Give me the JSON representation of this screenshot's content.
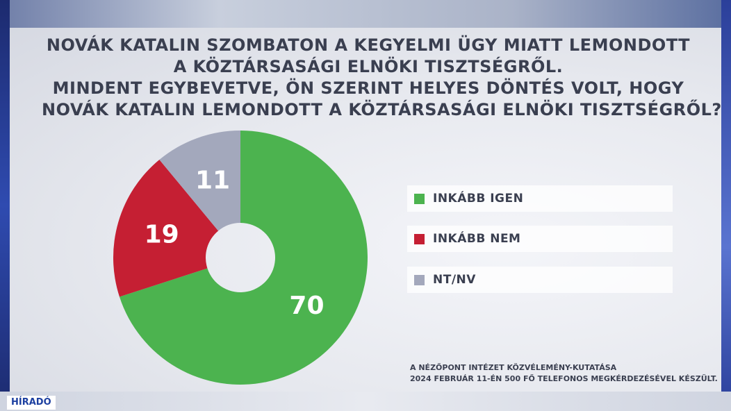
{
  "title_lines": [
    "NOVÁK KATALIN SZOMBATON A KEGYELMI ÜGY MIATT LEMONDOTT",
    "A KÖZTÁRSASÁGI ELNÖKI TISZTSÉGRŐL.",
    "MINDENT EGYBEVETVE, ÖN SZERINT HELYES DÖNTÉS VOLT, HOGY",
    "NOVÁK KATALIN LEMONDOTT A KÖZTÁRSASÁGI ELNÖKI TISZTSÉGRŐL?"
  ],
  "source_lines": [
    "A NÉZŐPONT INTÉZET KÖZVÉLEMÉNY-KUTATÁSA",
    "2024 FEBRUÁR 11-ÉN 500 FŐ TELEFONOS MEGKÉRDEZÉSÉVEL KÉSZÜLT."
  ],
  "logo": "HÍRADÓ",
  "chart_data": {
    "type": "pie",
    "donut": true,
    "start": "top",
    "direction": "clockwise",
    "slices": [
      {
        "label": "INKÁBB IGEN",
        "value": 70,
        "color": "#4cb34f"
      },
      {
        "label": "INKÁBB NEM",
        "value": 19,
        "color": "#c51f33"
      },
      {
        "label": "NT/NV",
        "value": 11,
        "color": "#a3a8bc"
      }
    ]
  }
}
